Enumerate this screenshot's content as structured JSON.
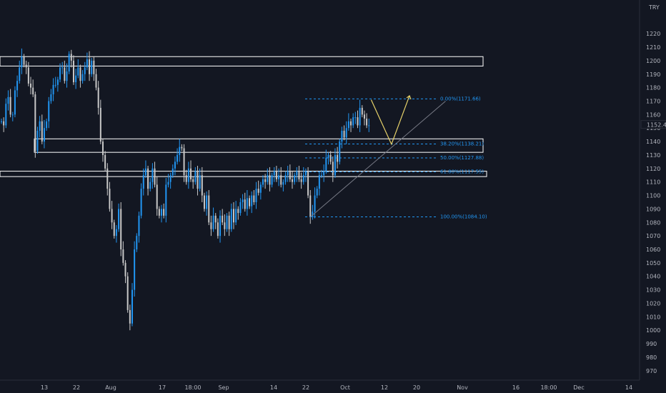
{
  "chart_data": {
    "type": "candlestick",
    "symbol_unit": "TRY",
    "price_label": "1152.41",
    "ylim": [
      963,
      1245
    ],
    "y_ticks": [
      970,
      980,
      990,
      1000,
      1010,
      1020,
      1030,
      1040,
      1050,
      1060,
      1070,
      1080,
      1090,
      1100,
      1110,
      1120,
      1130,
      1140,
      1150,
      1160,
      1170,
      1180,
      1190,
      1200,
      1210,
      1220
    ],
    "x_ticks": [
      "13",
      "22",
      "Aug",
      "17",
      "18:00",
      "Sep",
      "14",
      "22",
      "Oct",
      "12",
      "20",
      "Nov",
      "16",
      "18:00",
      "Dec",
      "14"
    ],
    "grid": false,
    "colors": {
      "background": "#131722",
      "up": "#2196f3",
      "down": "#c8c8c8",
      "fib": "#2196f3",
      "projection": "#e8d36a",
      "trend": "#787b86",
      "zone": "#ffffff"
    },
    "fib_levels": [
      {
        "label": "0.00%(1171.66)",
        "value": 1171.66
      },
      {
        "label": "38.20%(1138.21)",
        "value": 1138.21
      },
      {
        "label": "50.00%(1127.88)",
        "value": 1127.88
      },
      {
        "label": "61.80%(1117.55)",
        "value": 1117.55
      },
      {
        "label": "100.00%(1084.10)",
        "value": 1084.1
      }
    ],
    "zones": [
      {
        "low": 1196,
        "high": 1203
      },
      {
        "low": 1132,
        "high": 1142
      },
      {
        "low": 1114,
        "high": 1118
      }
    ],
    "projection_path": [
      {
        "bar": 164,
        "price": 1171
      },
      {
        "bar": 173,
        "price": 1138
      },
      {
        "bar": 181,
        "price": 1174
      }
    ],
    "trendline": [
      {
        "bar": 137,
        "price": 1084
      },
      {
        "bar": 197,
        "price": 1170
      }
    ],
    "closes": [
      1155,
      1152,
      1168,
      1173,
      1160,
      1160,
      1178,
      1185,
      1195,
      1203,
      1197,
      1195,
      1183,
      1180,
      1175,
      1133,
      1148,
      1155,
      1140,
      1150,
      1155,
      1170,
      1175,
      1182,
      1182,
      1186,
      1195,
      1195,
      1185,
      1192,
      1205,
      1200,
      1184,
      1189,
      1195,
      1185,
      1190,
      1195,
      1201,
      1190,
      1200,
      1190,
      1180,
      1165,
      1140,
      1130,
      1120,
      1105,
      1090,
      1080,
      1070,
      1075,
      1090,
      1060,
      1050,
      1040,
      1015,
      1005,
      1030,
      1060,
      1070,
      1085,
      1105,
      1115,
      1120,
      1105,
      1110,
      1120,
      1108,
      1090,
      1085,
      1090,
      1085,
      1108,
      1110,
      1115,
      1120,
      1125,
      1130,
      1136,
      1135,
      1115,
      1110,
      1120,
      1112,
      1110,
      1118,
      1105,
      1115,
      1100,
      1090,
      1100,
      1080,
      1075,
      1085,
      1080,
      1070,
      1085,
      1080,
      1075,
      1085,
      1075,
      1090,
      1080,
      1090,
      1087,
      1095,
      1097,
      1090,
      1098,
      1092,
      1100,
      1095,
      1105,
      1102,
      1108,
      1112,
      1110,
      1115,
      1108,
      1115,
      1118,
      1112,
      1115,
      1108,
      1110,
      1115,
      1118,
      1112,
      1110,
      1115,
      1118,
      1112,
      1110,
      1115,
      1118,
      1100,
      1084,
      1088,
      1100,
      1105,
      1115,
      1115,
      1118,
      1128,
      1130,
      1125,
      1115,
      1130,
      1125,
      1140,
      1148,
      1143,
      1150,
      1155,
      1152,
      1158,
      1158,
      1152,
      1165,
      1160,
      1157,
      1152,
      1152
    ],
    "first_bar_x": 2,
    "bar_spacing": 3.155
  }
}
